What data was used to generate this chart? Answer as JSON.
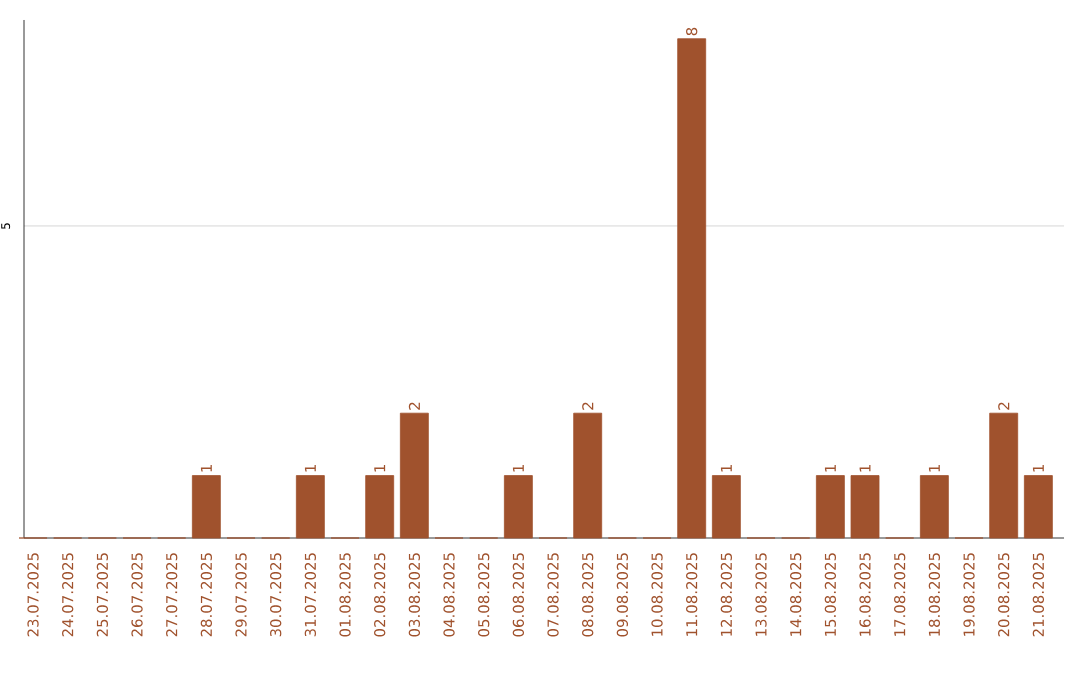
{
  "chart_data": {
    "type": "bar",
    "categories": [
      "23.07.2025",
      "24.07.2025",
      "25.07.2025",
      "26.07.2025",
      "27.07.2025",
      "28.07.2025",
      "29.07.2025",
      "30.07.2025",
      "31.07.2025",
      "01.08.2025",
      "02.08.2025",
      "03.08.2025",
      "04.08.2025",
      "05.08.2025",
      "06.08.2025",
      "07.08.2025",
      "08.08.2025",
      "09.08.2025",
      "10.08.2025",
      "11.08.2025",
      "12.08.2025",
      "13.08.2025",
      "14.08.2025",
      "15.08.2025",
      "16.08.2025",
      "17.08.2025",
      "18.08.2025",
      "19.08.2025",
      "20.08.2025",
      "21.08.2025"
    ],
    "values": [
      0,
      0,
      0,
      0,
      0,
      1,
      0,
      0,
      1,
      0,
      1,
      2,
      0,
      0,
      1,
      0,
      2,
      0,
      0,
      8,
      1,
      0,
      0,
      1,
      1,
      0,
      1,
      0,
      2,
      1
    ],
    "value_labels": [
      null,
      null,
      null,
      null,
      null,
      "1",
      null,
      null,
      "1",
      null,
      "1",
      "2",
      null,
      null,
      "1",
      null,
      "2",
      null,
      null,
      "8",
      "1",
      null,
      null,
      "1",
      "1",
      null,
      "1",
      null,
      "2",
      "1"
    ],
    "color": "#a0522d",
    "ylim": [
      0,
      8.3
    ],
    "yticks": [
      5
    ],
    "grid": "y"
  }
}
